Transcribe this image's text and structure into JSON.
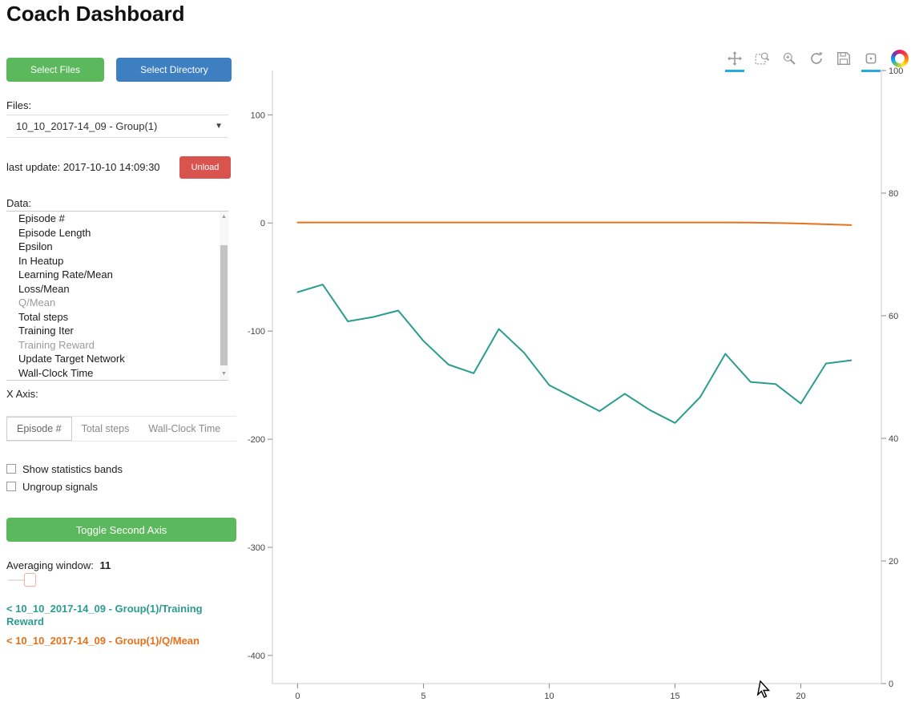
{
  "page_title": "Coach Dashboard",
  "icons": {
    "chevron_down": "▼",
    "scroll_up": "▲",
    "scroll_down": "▼"
  },
  "colors": {
    "accent_green": "#5cb85c",
    "accent_blue": "#3d7fc0",
    "accent_red": "#d9534f",
    "series_teal": "#2a9d8f",
    "series_orange": "#e8701a",
    "active_tool_underline": "#26aae1"
  },
  "sidebar": {
    "select_files_label": "Select Files",
    "select_directory_label": "Select Directory",
    "files_label": "Files:",
    "files_selected": "10_10_2017-14_09 - Group(1)",
    "last_update": "last update: 2017-10-10 14:09:30",
    "unload_label": "Unload",
    "data_label": "Data:",
    "data_items": [
      {
        "label": "Episode #",
        "dimmed": false
      },
      {
        "label": "Episode Length",
        "dimmed": false
      },
      {
        "label": "Epsilon",
        "dimmed": false
      },
      {
        "label": "In Heatup",
        "dimmed": false
      },
      {
        "label": "Learning Rate/Mean",
        "dimmed": false
      },
      {
        "label": "Loss/Mean",
        "dimmed": false
      },
      {
        "label": "Q/Mean",
        "dimmed": true
      },
      {
        "label": "Total steps",
        "dimmed": false
      },
      {
        "label": "Training Iter",
        "dimmed": false
      },
      {
        "label": "Training Reward",
        "dimmed": true
      },
      {
        "label": "Update Target Network",
        "dimmed": false
      },
      {
        "label": "Wall-Clock Time",
        "dimmed": false
      }
    ],
    "x_axis_label": "X Axis:",
    "x_axis_options": [
      "Episode #",
      "Total steps",
      "Wall-Clock Time"
    ],
    "x_axis_selected": "Episode #",
    "checkboxes": [
      {
        "label": "Show statistics bands",
        "checked": false
      },
      {
        "label": "Ungroup signals",
        "checked": false
      }
    ],
    "toggle_second_axis_label": "Toggle Second Axis",
    "averaging_window_label": "Averaging window:",
    "averaging_window_value": "11",
    "legend": [
      {
        "label": "< 10_10_2017-14_09 - Group(1)/Training Reward",
        "color": "#2a9d8f"
      },
      {
        "label": "< 10_10_2017-14_09 - Group(1)/Q/Mean",
        "color": "#e8701a"
      }
    ]
  },
  "toolbar": {
    "tools": [
      {
        "name": "pan",
        "active": true
      },
      {
        "name": "box-zoom",
        "active": false
      },
      {
        "name": "wheel-zoom",
        "active": false
      },
      {
        "name": "reset",
        "active": false
      },
      {
        "name": "save",
        "active": false
      },
      {
        "name": "hover",
        "active": true
      }
    ],
    "logo": "bokeh"
  },
  "chart_data": {
    "type": "line",
    "title": "",
    "xlabel": "",
    "ylabel": "",
    "grid": false,
    "legend_position": "external-sidebar",
    "x": [
      0,
      1,
      2,
      3,
      4,
      5,
      6,
      7,
      8,
      9,
      10,
      11,
      12,
      13,
      14,
      15,
      16,
      17,
      18,
      19,
      20,
      21,
      22
    ],
    "series": [
      {
        "name": "10_10_2017-14_09 - Group(1)/Training Reward",
        "color": "#2a9d8f",
        "axis": "left",
        "values": [
          -64,
          -57,
          -91,
          -87,
          -81,
          -109,
          -131,
          -139,
          -98,
          -120,
          -150,
          -162,
          -174,
          -158,
          -173,
          -185,
          -161,
          -121,
          -147,
          -149,
          -167,
          -130,
          -127
        ]
      },
      {
        "name": "10_10_2017-14_09 - Group(1)/Q/Mean",
        "color": "#e8701a",
        "axis": "left",
        "values": [
          0.5,
          0.5,
          0.5,
          0.5,
          0.5,
          0.5,
          0.5,
          0.5,
          0.5,
          0.5,
          0.5,
          0.5,
          0.5,
          0.5,
          0.5,
          0.5,
          0.5,
          0.5,
          0.3,
          0,
          -0.5,
          -1.2,
          -2
        ]
      }
    ],
    "x_axis": {
      "ticks": [
        0,
        5,
        10,
        15,
        20
      ],
      "range": [
        -1,
        23.2
      ]
    },
    "y_axis_left": {
      "ticks": [
        100,
        0,
        -100,
        -200,
        -300,
        -400
      ],
      "range": [
        -426,
        141
      ]
    },
    "y_axis_right": {
      "ticks": [
        100,
        80,
        60,
        40,
        20,
        0
      ],
      "range": [
        0,
        100
      ]
    }
  }
}
